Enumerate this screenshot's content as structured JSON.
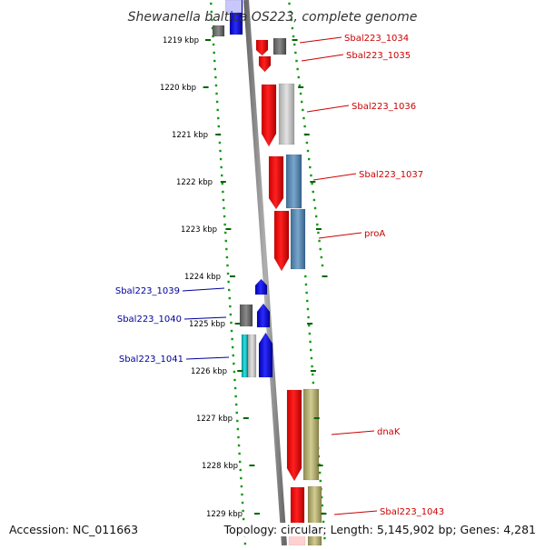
{
  "title": "Shewanella baltica OS223, complete genome",
  "footer": {
    "accession": "Accession: NC_011663",
    "topology": "Topology: circular; Length: 5,145,902 bp; Genes: 4,281"
  },
  "ticks": [
    "1219 kbp",
    "1220 kbp",
    "1221 kbp",
    "1222 kbp",
    "1223 kbp",
    "1224 kbp",
    "1225 kbp",
    "1226 kbp",
    "1227 kbp",
    "1228 kbp",
    "1229 kbp"
  ],
  "gene_labels": {
    "right": [
      "Sbal223_1034",
      "Sbal223_1035",
      "Sbal223_1036",
      "Sbal223_1037",
      "proA",
      "dnaK",
      "Sbal223_1043"
    ],
    "left": [
      "Sbal223_1039",
      "Sbal223_1040",
      "Sbal223_1041"
    ]
  },
  "colors": {
    "forward_gene": "#ff0000",
    "reverse_gene": "#0000ee",
    "right_label": "#cc0000",
    "left_label": "#000099",
    "backbone": "#888888",
    "tick": "#006600"
  }
}
